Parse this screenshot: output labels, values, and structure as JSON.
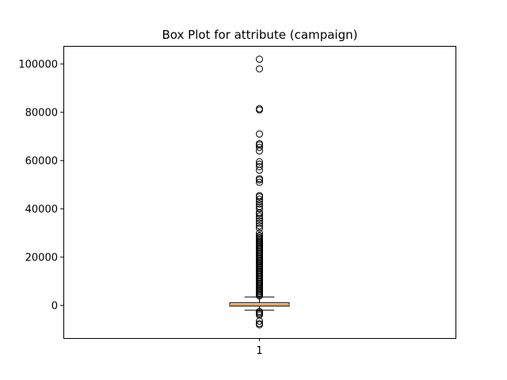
{
  "chart_data": {
    "type": "box",
    "title": "Box Plot for attribute (campaign)",
    "xlabel": "",
    "ylabel": "",
    "categories": [
      "1"
    ],
    "ylim": [
      -13500,
      107500
    ],
    "yticks": [
      0,
      20000,
      40000,
      60000,
      80000,
      100000
    ],
    "grid": false,
    "box": {
      "q1": -300,
      "median": 300,
      "q3": 1100,
      "whisker_low": -2000,
      "whisker_high": 3500
    },
    "outliers": [
      102000,
      98000,
      81500,
      81000,
      71000,
      67000,
      66500,
      65500,
      64000,
      59500,
      58500,
      57500,
      56000,
      52500,
      52000,
      51000,
      45500,
      45000,
      44000,
      43000,
      42000,
      41000,
      40000,
      38500,
      38000,
      37000,
      36000,
      35000,
      34000,
      33000,
      32000,
      30000,
      29000,
      28500,
      28000,
      27500,
      27000,
      26500,
      26000,
      25500,
      25000,
      24500,
      24000,
      23500,
      23000,
      22500,
      22000,
      21500,
      21000,
      20500,
      20000,
      19500,
      19000,
      18500,
      18000,
      17500,
      17000,
      16500,
      16000,
      15500,
      15000,
      14500,
      14000,
      13500,
      13000,
      12500,
      12000,
      11500,
      11000,
      10500,
      10000,
      9500,
      9000,
      8500,
      8000,
      7500,
      7000,
      6500,
      6000,
      5500,
      5000,
      4500,
      4000,
      -2500,
      -3000,
      -3500,
      -4000,
      -6500,
      -7500,
      -8000
    ]
  }
}
